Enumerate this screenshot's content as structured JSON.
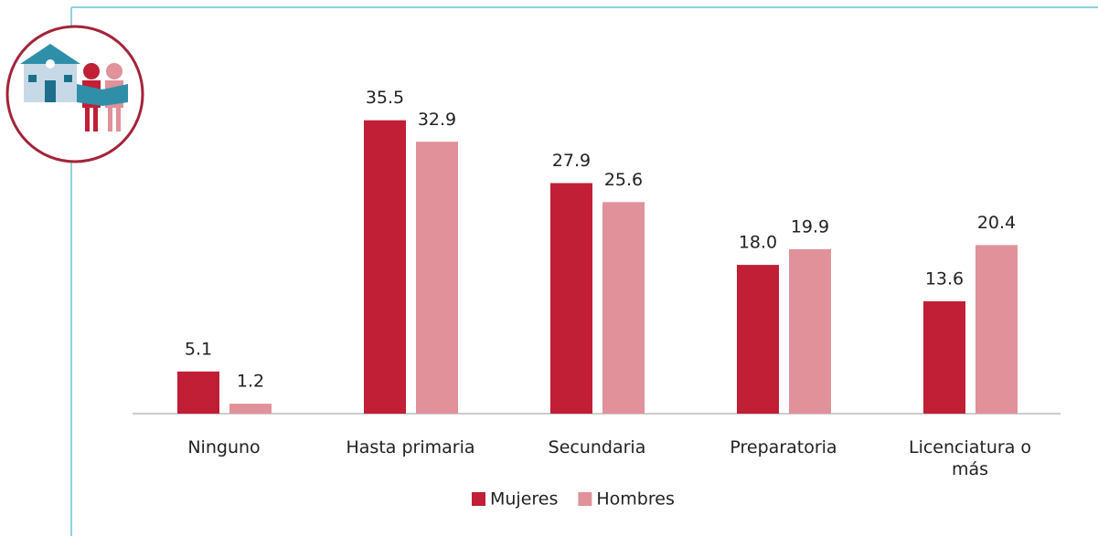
{
  "chart_data": {
    "type": "bar",
    "categories": [
      "Ninguno",
      "Hasta primaria",
      "Secundaria",
      "Preparatoria",
      "Licenciatura o más"
    ],
    "series": [
      {
        "name": "Mujeres",
        "color": "#c01f36",
        "values": [
          5.1,
          35.5,
          27.9,
          18.0,
          13.6
        ],
        "value_labels": [
          "5.1",
          "35.5",
          "27.9",
          "18.0",
          "13.6"
        ]
      },
      {
        "name": "Hombres",
        "color": "#e0919a",
        "values": [
          1.2,
          32.9,
          25.6,
          19.9,
          20.4
        ],
        "value_labels": [
          "1.2",
          "32.9",
          "25.6",
          "19.9",
          "20.4"
        ]
      }
    ],
    "ylim": [
      0,
      40
    ],
    "legend": "bottom"
  }
}
